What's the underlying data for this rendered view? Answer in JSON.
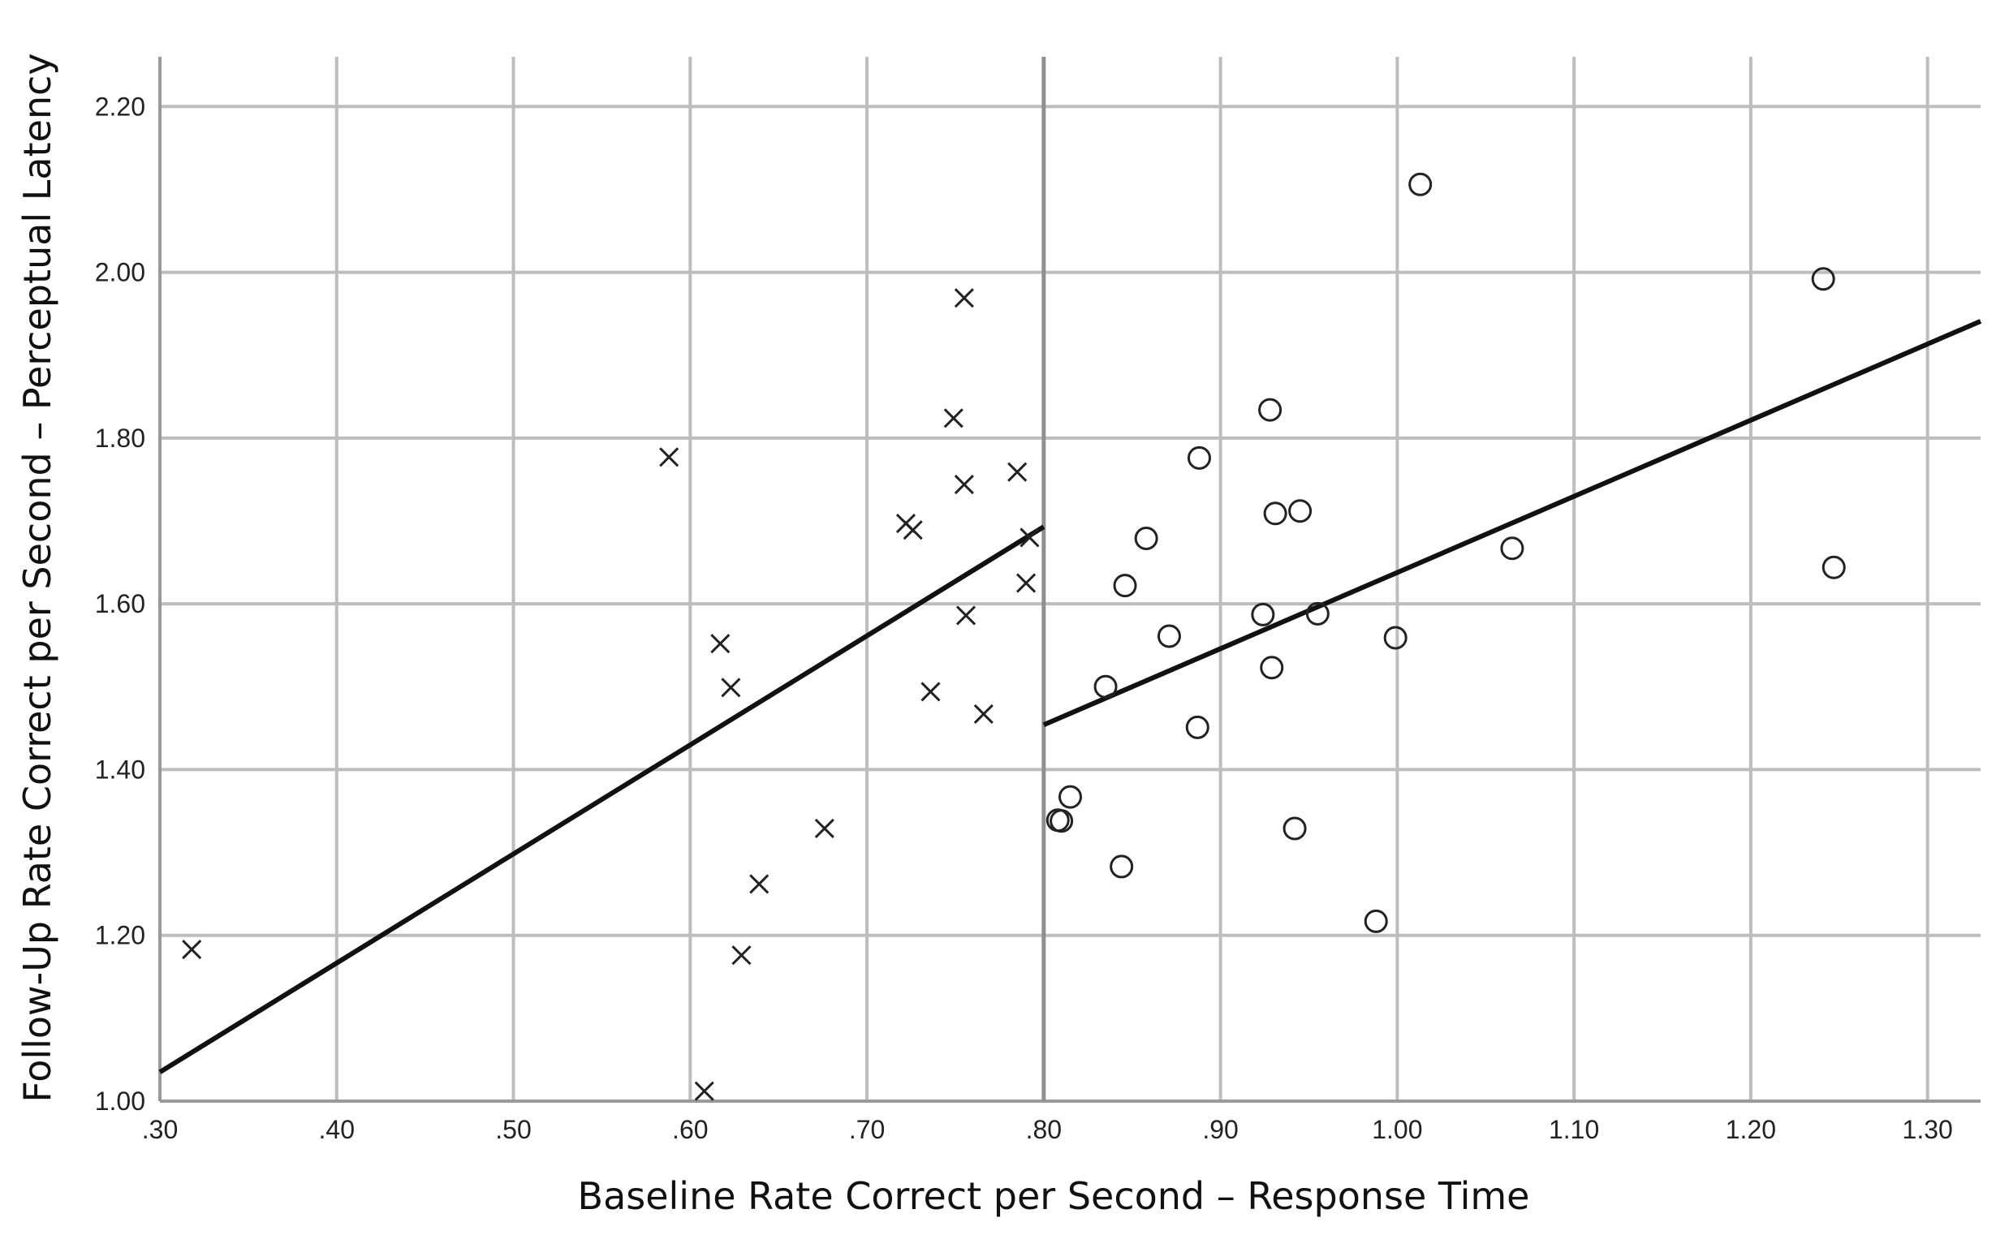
{
  "chart_data": {
    "type": "scatter",
    "xlabel": "Baseline Rate Correct per Second – Response Time",
    "ylabel": "Follow-Up Rate Correct per Second – Perceptual Latency",
    "xlim": [
      0.3,
      1.33
    ],
    "ylim": [
      1.0,
      2.26
    ],
    "xticks": [
      ".30",
      ".40",
      ".50",
      ".60",
      ".70",
      ".80",
      ".90",
      "1.00",
      "1.10",
      "1.20",
      "1.30"
    ],
    "xtick_values": [
      0.3,
      0.4,
      0.5,
      0.6,
      0.7,
      0.8,
      0.9,
      1.0,
      1.1,
      1.2,
      1.3
    ],
    "yticks": [
      "1.00",
      "1.20",
      "1.40",
      "1.60",
      "1.80",
      "2.00",
      "2.20"
    ],
    "ytick_values": [
      1.0,
      1.2,
      1.4,
      1.6,
      1.8,
      2.0,
      2.2
    ],
    "grid": true,
    "divider_x": 0.8,
    "series": [
      {
        "marker": "x",
        "points": [
          [
            0.318,
            1.183
          ],
          [
            0.588,
            1.777
          ],
          [
            0.608,
            1.012
          ],
          [
            0.617,
            1.552
          ],
          [
            0.623,
            1.499
          ],
          [
            0.629,
            1.176
          ],
          [
            0.639,
            1.262
          ],
          [
            0.676,
            1.329
          ],
          [
            0.722,
            1.697
          ],
          [
            0.726,
            1.689
          ],
          [
            0.736,
            1.494
          ],
          [
            0.749,
            1.824
          ],
          [
            0.755,
            1.969
          ],
          [
            0.755,
            1.744
          ],
          [
            0.756,
            1.586
          ],
          [
            0.766,
            1.467
          ],
          [
            0.785,
            1.759
          ],
          [
            0.79,
            1.625
          ],
          [
            0.792,
            1.68
          ]
        ],
        "fit_line": [
          [
            0.3,
            1.035
          ],
          [
            0.8,
            1.693
          ]
        ]
      },
      {
        "marker": "o",
        "points": [
          [
            0.808,
            1.339
          ],
          [
            0.81,
            1.338
          ],
          [
            0.815,
            1.367
          ],
          [
            0.835,
            1.5
          ],
          [
            0.844,
            1.283
          ],
          [
            0.846,
            1.622
          ],
          [
            0.858,
            1.679
          ],
          [
            0.871,
            1.561
          ],
          [
            0.887,
            1.451
          ],
          [
            0.888,
            1.776
          ],
          [
            0.924,
            1.587
          ],
          [
            0.928,
            1.834
          ],
          [
            0.929,
            1.523
          ],
          [
            0.931,
            1.709
          ],
          [
            0.942,
            1.329
          ],
          [
            0.945,
            1.712
          ],
          [
            0.955,
            1.588
          ],
          [
            0.988,
            1.217
          ],
          [
            0.999,
            1.559
          ],
          [
            1.013,
            2.106
          ],
          [
            1.065,
            1.667
          ],
          [
            1.241,
            1.992
          ],
          [
            1.247,
            1.644
          ]
        ],
        "fit_line": [
          [
            0.8,
            1.454
          ],
          [
            1.33,
            1.941
          ]
        ]
      }
    ]
  }
}
